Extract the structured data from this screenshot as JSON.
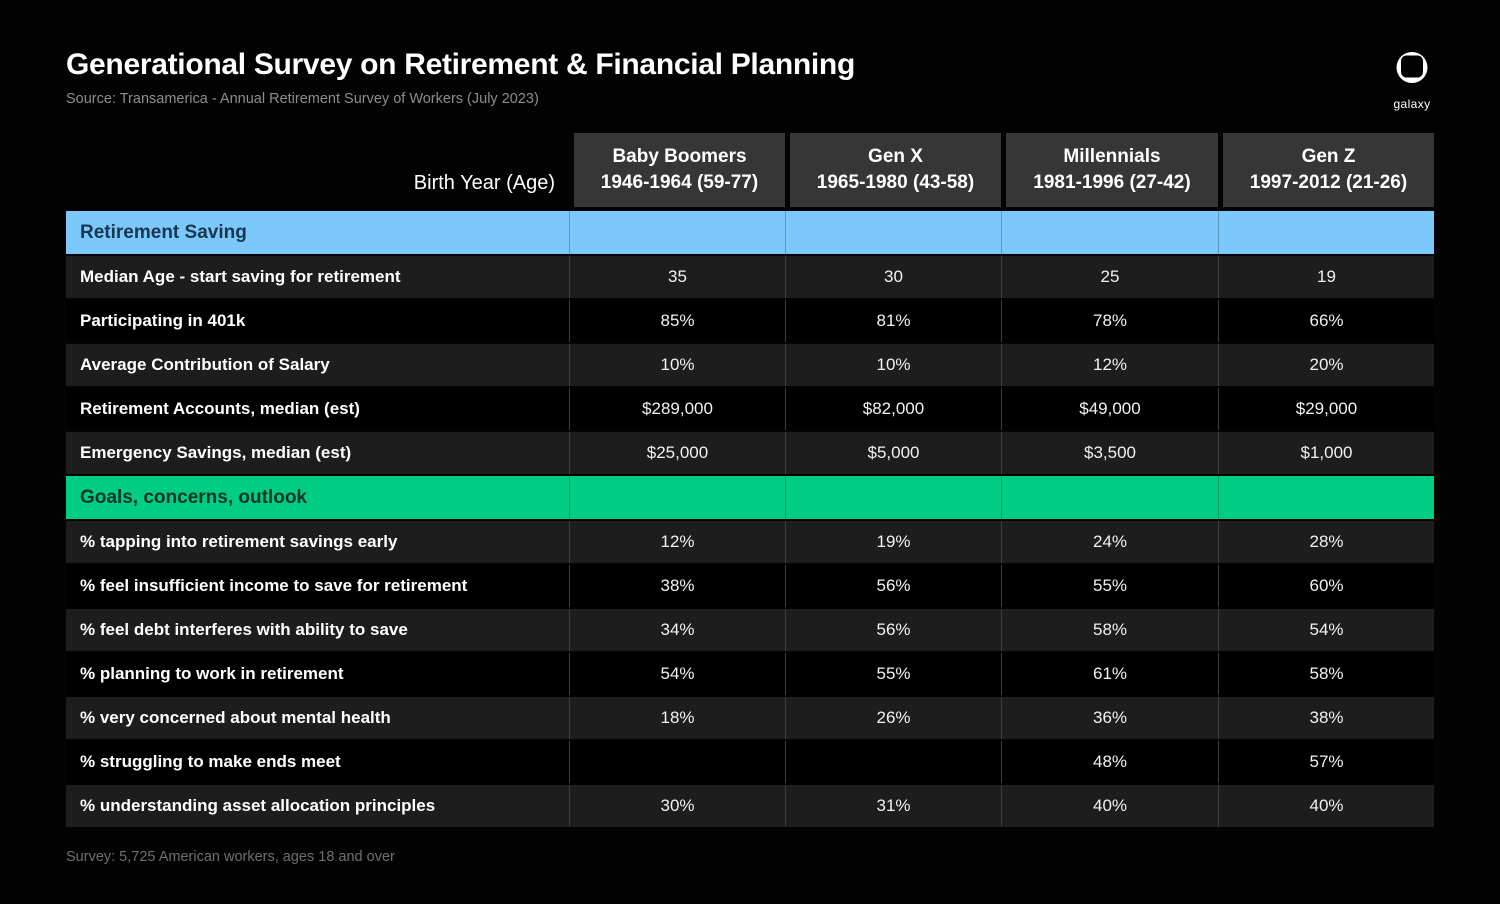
{
  "header": {
    "title": "Generational Survey on Retirement & Financial Planning",
    "source": "Source: Transamerica - Annual Retirement Survey of Workers (July 2023)"
  },
  "logo": {
    "icon": "galaxy-helmet-icon",
    "label": "galaxy"
  },
  "footer": {
    "note": "Survey: 5,725 American workers, ages 18 and over"
  },
  "colors": {
    "page_bg": "#030303",
    "header_cell_bg": "#363636",
    "row_shade_bg": "#1d1d1d",
    "row_dark_bg": "#000000",
    "section_blue": "#7cc8fb",
    "section_blue_text": "#16374d",
    "section_green": "#00cd84",
    "section_green_text": "#0b3528"
  },
  "chart_data": {
    "type": "table",
    "title": "Generational Survey on Retirement & Financial Planning",
    "corner_label": "Birth Year (Age)",
    "columns": [
      {
        "name": "Baby Boomers",
        "range": "1946-1964 (59-77)"
      },
      {
        "name": "Gen X",
        "range": "1965-1980 (43-58)"
      },
      {
        "name": "Millennials",
        "range": "1981-1996 (27-42)"
      },
      {
        "name": "Gen Z",
        "range": "1997-2012 (21-26)"
      }
    ],
    "sections": [
      {
        "title": "Retirement Saving",
        "color": "#7cc8fb",
        "text_color": "#16374d",
        "rows": [
          {
            "label": "Median Age - start saving for retirement",
            "values": [
              "35",
              "30",
              "25",
              "19"
            ]
          },
          {
            "label": "Participating in 401k",
            "values": [
              "85%",
              "81%",
              "78%",
              "66%"
            ]
          },
          {
            "label": "Average Contribution of Salary",
            "values": [
              "10%",
              "10%",
              "12%",
              "20%"
            ]
          },
          {
            "label": "Retirement Accounts, median (est)",
            "values": [
              "$289,000",
              "$82,000",
              "$49,000",
              "$29,000"
            ]
          },
          {
            "label": "Emergency Savings, median (est)",
            "values": [
              "$25,000",
              "$5,000",
              "$3,500",
              "$1,000"
            ]
          }
        ]
      },
      {
        "title": "Goals, concerns, outlook",
        "color": "#00cd84",
        "text_color": "#0b3528",
        "rows": [
          {
            "label": "% tapping into retirement savings early",
            "values": [
              "12%",
              "19%",
              "24%",
              "28%"
            ]
          },
          {
            "label": "% feel insufficient income to save for retirement",
            "values": [
              "38%",
              "56%",
              "55%",
              "60%"
            ]
          },
          {
            "label": "% feel debt interferes with ability to save",
            "values": [
              "34%",
              "56%",
              "58%",
              "54%"
            ]
          },
          {
            "label": "% planning to work in retirement",
            "values": [
              "54%",
              "55%",
              "61%",
              "58%"
            ]
          },
          {
            "label": "% very concerned about mental health",
            "values": [
              "18%",
              "26%",
              "36%",
              "38%"
            ]
          },
          {
            "label": "% struggling to make ends meet",
            "values": [
              "",
              "",
              "48%",
              "57%"
            ]
          },
          {
            "label": "% understanding asset allocation principles",
            "values": [
              "30%",
              "31%",
              "40%",
              "40%"
            ]
          }
        ]
      }
    ]
  }
}
